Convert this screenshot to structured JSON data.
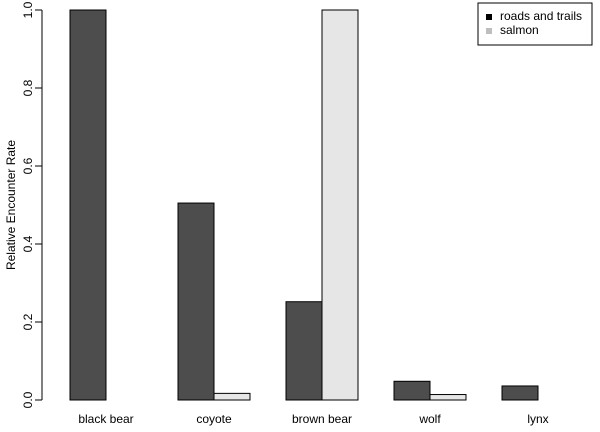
{
  "chart_data": {
    "type": "bar",
    "y_label": "Relative Encounter Rate",
    "categories": [
      "black bear",
      "coyote",
      "brown bear",
      "wolf",
      "lynx"
    ],
    "series": [
      {
        "name": "roads and trails",
        "color": "#4d4d4d",
        "values": [
          1.0,
          0.505,
          0.252,
          0.048,
          0.036
        ]
      },
      {
        "name": "salmon",
        "color": "#e6e6e6",
        "values": [
          0,
          0.017,
          1.0,
          0.014,
          0
        ]
      }
    ],
    "ylim": [
      0,
      1
    ],
    "yticks": [
      {
        "value": 0,
        "label": "0.0"
      },
      {
        "value": 0.2,
        "label": "0.2"
      },
      {
        "value": 0.4,
        "label": "0.4"
      },
      {
        "value": 0.6,
        "label": "0.6"
      },
      {
        "value": 0.8,
        "label": "0.8"
      },
      {
        "value": 1,
        "label": "1.0"
      }
    ],
    "legend": "top-right"
  }
}
